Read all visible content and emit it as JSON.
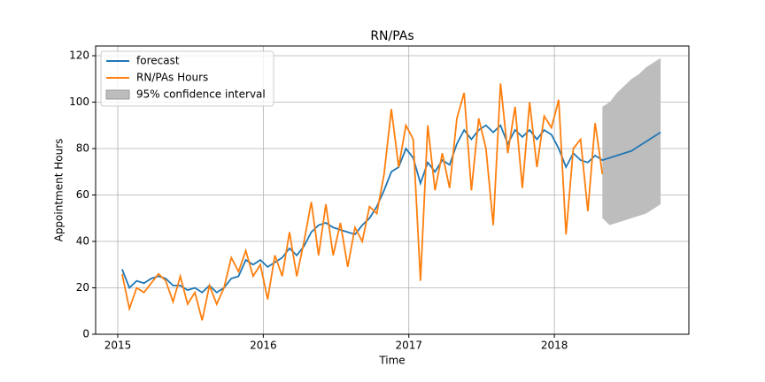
{
  "chart_data": {
    "type": "line",
    "title": "RN/PAs",
    "x_label": "Time",
    "y_label": "Appointment Hours",
    "xlim": [
      2014.848,
      2018.924
    ],
    "xticks": [
      2015,
      2016,
      2017,
      2018
    ],
    "ylim": [
      0,
      124.2
    ],
    "yticks": [
      0,
      20,
      40,
      60,
      80,
      100,
      120
    ],
    "grid": true,
    "legend": "upper left",
    "series": [
      {
        "name": "forecast",
        "color": "#1f77b4",
        "x": [
          2015.03,
          2015.08,
          2015.13,
          2015.18,
          2015.23,
          2015.28,
          2015.33,
          2015.38,
          2015.43,
          2015.48,
          2015.53,
          2015.58,
          2015.63,
          2015.68,
          2015.73,
          2015.78,
          2015.83,
          2015.88,
          2015.93,
          2015.98,
          2016.03,
          2016.08,
          2016.13,
          2016.18,
          2016.23,
          2016.28,
          2016.33,
          2016.38,
          2016.43,
          2016.48,
          2016.53,
          2016.58,
          2016.63,
          2016.68,
          2016.73,
          2016.78,
          2016.83,
          2016.88,
          2016.93,
          2016.98,
          2017.03,
          2017.08,
          2017.13,
          2017.18,
          2017.23,
          2017.28,
          2017.33,
          2017.38,
          2017.43,
          2017.48,
          2017.53,
          2017.58,
          2017.63,
          2017.68,
          2017.73,
          2017.78,
          2017.83,
          2017.88,
          2017.93,
          2017.98,
          2018.03,
          2018.08,
          2018.13,
          2018.18,
          2018.23,
          2018.28,
          2018.33,
          2018.38,
          2018.43,
          2018.48,
          2018.53,
          2018.58,
          2018.63,
          2018.68,
          2018.73
        ],
        "values": [
          28,
          20,
          23,
          22,
          24,
          25,
          24,
          21,
          21,
          19,
          20,
          18,
          21,
          18,
          20,
          24,
          25,
          32,
          30,
          32,
          29,
          31,
          33,
          37,
          34,
          38,
          44,
          47,
          48,
          46,
          45,
          44,
          43,
          47,
          50,
          55,
          62,
          70,
          72,
          80,
          76,
          65,
          74,
          70,
          75,
          73,
          82,
          88,
          84,
          88,
          90,
          87,
          90,
          82,
          88,
          85,
          88,
          84,
          88,
          86,
          80,
          72,
          78,
          75,
          74,
          77,
          75,
          76,
          77,
          78,
          79,
          81,
          83,
          85,
          87
        ]
      },
      {
        "name": "RN/PAs Hours",
        "color": "#ff7f0e",
        "x": [
          2015.03,
          2015.08,
          2015.13,
          2015.18,
          2015.23,
          2015.28,
          2015.33,
          2015.38,
          2015.43,
          2015.48,
          2015.53,
          2015.58,
          2015.63,
          2015.68,
          2015.73,
          2015.78,
          2015.83,
          2015.88,
          2015.93,
          2015.98,
          2016.03,
          2016.08,
          2016.13,
          2016.18,
          2016.23,
          2016.28,
          2016.33,
          2016.38,
          2016.43,
          2016.48,
          2016.53,
          2016.58,
          2016.63,
          2016.68,
          2016.73,
          2016.78,
          2016.83,
          2016.88,
          2016.93,
          2016.98,
          2017.03,
          2017.08,
          2017.13,
          2017.18,
          2017.23,
          2017.28,
          2017.33,
          2017.38,
          2017.43,
          2017.48,
          2017.53,
          2017.58,
          2017.63,
          2017.68,
          2017.73,
          2017.78,
          2017.83,
          2017.88,
          2017.93,
          2017.98,
          2018.03,
          2018.08,
          2018.13,
          2018.18,
          2018.23,
          2018.28,
          2018.33
        ],
        "values": [
          26,
          11,
          20,
          18,
          22,
          26,
          23,
          14,
          25,
          13,
          18,
          6,
          21,
          13,
          20,
          33,
          27,
          36,
          25,
          30,
          15,
          34,
          25,
          44,
          25,
          40,
          57,
          34,
          56,
          34,
          48,
          29,
          46,
          40,
          55,
          52,
          69,
          97,
          72,
          90,
          84,
          23,
          90,
          62,
          78,
          63,
          93,
          104,
          62,
          93,
          80,
          47,
          108,
          78,
          98,
          63,
          100,
          72,
          94,
          89,
          101,
          43,
          80,
          84,
          53,
          91,
          69
        ]
      }
    ],
    "band": {
      "name": "95% confidence interval",
      "color": "#bdbdbd",
      "x": [
        2018.33,
        2018.38,
        2018.43,
        2018.48,
        2018.53,
        2018.58,
        2018.63,
        2018.68,
        2018.73
      ],
      "lower": [
        50,
        47,
        48,
        49,
        50,
        51,
        52,
        54,
        56
      ],
      "upper": [
        98,
        100,
        104,
        107,
        110,
        112,
        115,
        117,
        119
      ]
    }
  }
}
